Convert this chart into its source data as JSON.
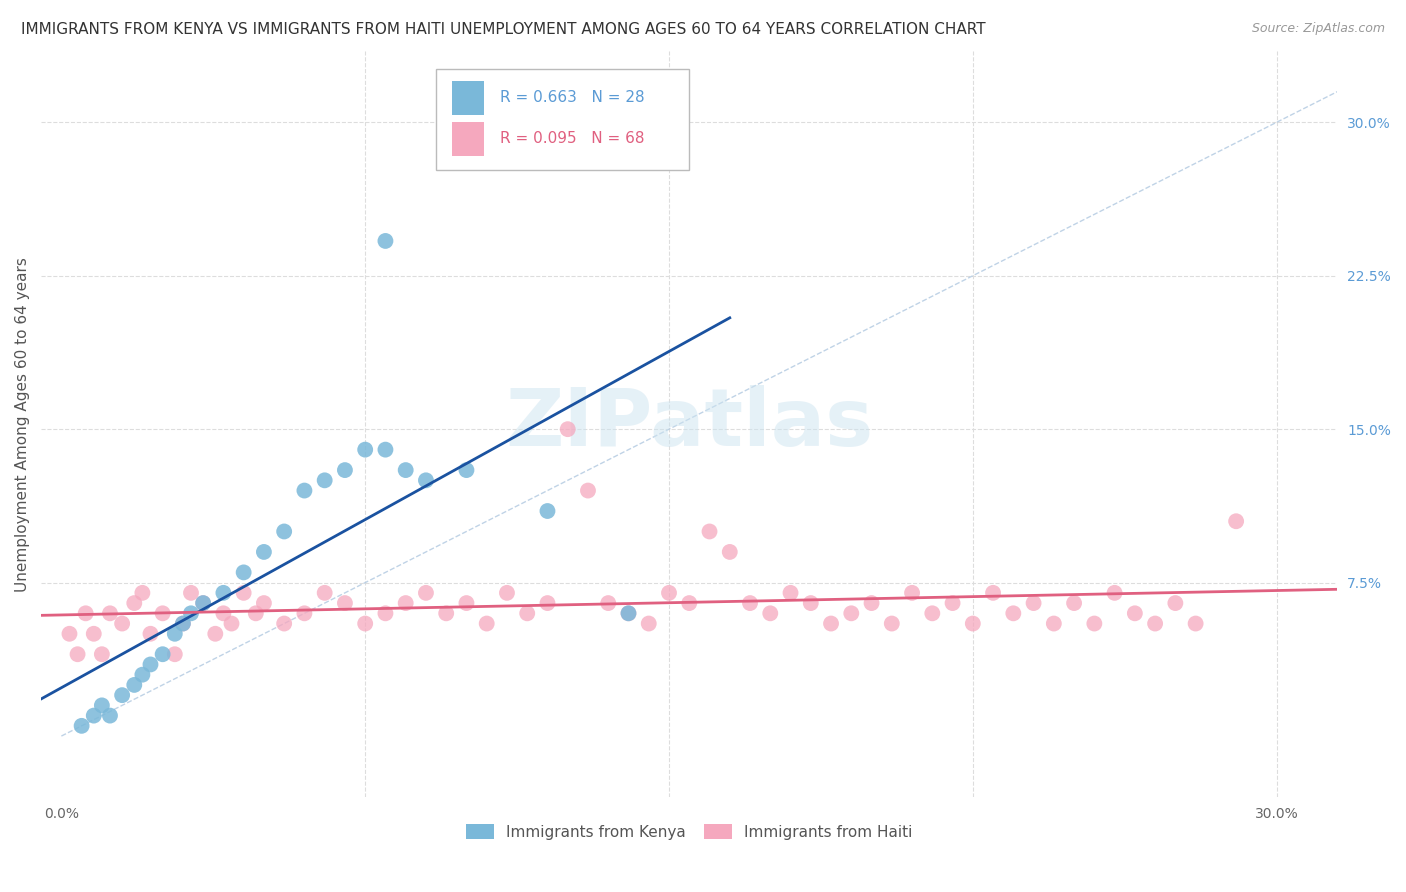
{
  "title": "IMMIGRANTS FROM KENYA VS IMMIGRANTS FROM HAITI UNEMPLOYMENT AMONG AGES 60 TO 64 YEARS CORRELATION CHART",
  "source": "Source: ZipAtlas.com",
  "ylabel": "Unemployment Among Ages 60 to 64 years",
  "xlim": [
    -0.005,
    0.315
  ],
  "ylim": [
    -0.03,
    0.335
  ],
  "kenya_color": "#7ab8d9",
  "haiti_color": "#f5a8be",
  "kenya_line_color": "#1a52a0",
  "haiti_line_color": "#e06080",
  "diag_line_color": "#b0c8e0",
  "kenya_R": 0.663,
  "kenya_N": 28,
  "haiti_R": 0.095,
  "haiti_N": 68,
  "legend_labels": [
    "Immigrants from Kenya",
    "Immigrants from Haiti"
  ],
  "watermark": "ZIPatlas",
  "bg_color": "#ffffff",
  "grid_color": "#dddddd",
  "title_fontsize": 11,
  "axis_label_fontsize": 11,
  "tick_fontsize": 10,
  "right_tick_color": "#5b9bd5",
  "kenya_x": [
    0.005,
    0.008,
    0.01,
    0.012,
    0.015,
    0.018,
    0.02,
    0.022,
    0.025,
    0.028,
    0.03,
    0.032,
    0.035,
    0.04,
    0.045,
    0.05,
    0.055,
    0.06,
    0.065,
    0.07,
    0.075,
    0.08,
    0.085,
    0.09,
    0.1,
    0.12,
    0.14,
    0.08
  ],
  "kenya_y": [
    0.005,
    0.01,
    0.015,
    0.01,
    0.02,
    0.025,
    0.03,
    0.035,
    0.04,
    0.05,
    0.055,
    0.06,
    0.065,
    0.07,
    0.08,
    0.09,
    0.1,
    0.12,
    0.125,
    0.13,
    0.14,
    0.14,
    0.13,
    0.125,
    0.13,
    0.11,
    0.06,
    0.242
  ],
  "haiti_x": [
    0.002,
    0.004,
    0.006,
    0.008,
    0.01,
    0.012,
    0.015,
    0.018,
    0.02,
    0.022,
    0.025,
    0.028,
    0.03,
    0.032,
    0.035,
    0.038,
    0.04,
    0.042,
    0.045,
    0.048,
    0.05,
    0.055,
    0.06,
    0.065,
    0.07,
    0.075,
    0.08,
    0.085,
    0.09,
    0.095,
    0.1,
    0.105,
    0.11,
    0.115,
    0.12,
    0.125,
    0.13,
    0.135,
    0.14,
    0.145,
    0.15,
    0.155,
    0.16,
    0.165,
    0.17,
    0.175,
    0.18,
    0.185,
    0.19,
    0.195,
    0.2,
    0.205,
    0.21,
    0.215,
    0.22,
    0.225,
    0.23,
    0.235,
    0.24,
    0.245,
    0.25,
    0.255,
    0.26,
    0.265,
    0.27,
    0.275,
    0.28,
    0.29
  ],
  "haiti_y": [
    0.05,
    0.04,
    0.06,
    0.05,
    0.04,
    0.06,
    0.055,
    0.065,
    0.07,
    0.05,
    0.06,
    0.04,
    0.055,
    0.07,
    0.065,
    0.05,
    0.06,
    0.055,
    0.07,
    0.06,
    0.065,
    0.055,
    0.06,
    0.07,
    0.065,
    0.055,
    0.06,
    0.065,
    0.07,
    0.06,
    0.065,
    0.055,
    0.07,
    0.06,
    0.065,
    0.15,
    0.12,
    0.065,
    0.06,
    0.055,
    0.07,
    0.065,
    0.1,
    0.09,
    0.065,
    0.06,
    0.07,
    0.065,
    0.055,
    0.06,
    0.065,
    0.055,
    0.07,
    0.06,
    0.065,
    0.055,
    0.07,
    0.06,
    0.065,
    0.055,
    0.065,
    0.055,
    0.07,
    0.06,
    0.055,
    0.065,
    0.055,
    0.105
  ]
}
